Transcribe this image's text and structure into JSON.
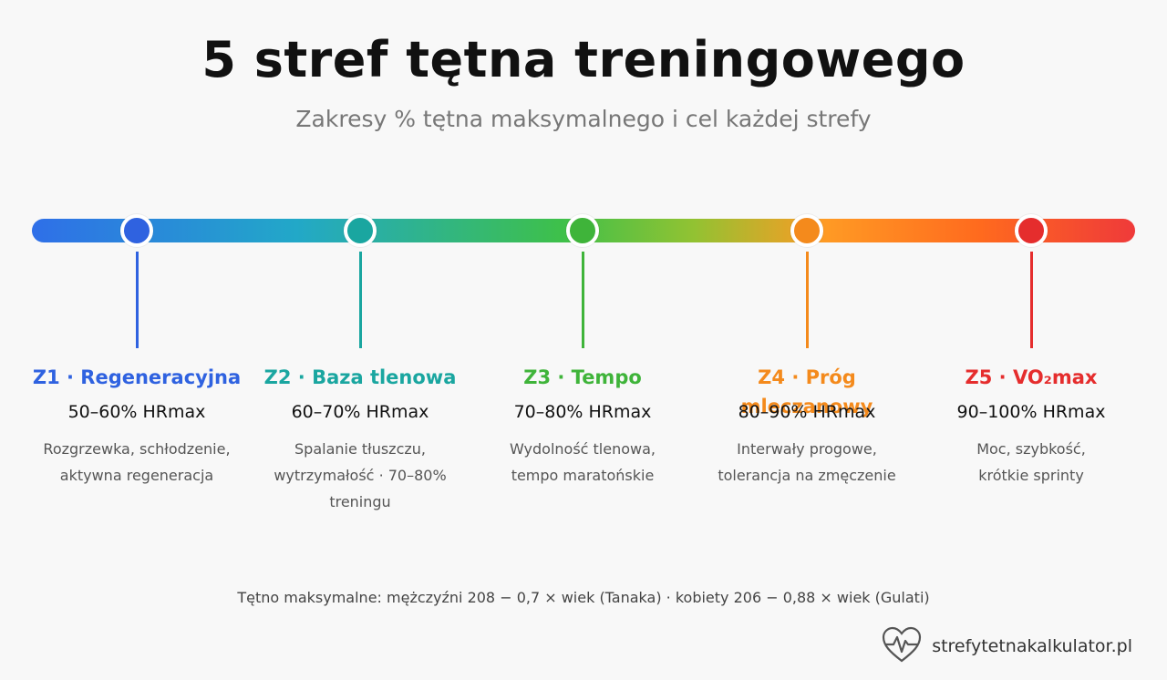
{
  "title": "5 stref tętna treningowego",
  "subtitle": "Zakresy % tętna maksymalnego i cel każdej strefy",
  "zones": [
    {
      "title": "Z1 · Regeneracyjna",
      "range": "50–60% HRmax",
      "desc": [
        "Rozgrzewka, schłodzenie,",
        "aktywna regeneracja"
      ],
      "color": "#2f62e0"
    },
    {
      "title": "Z2 · Baza tlenowa",
      "range": "60–70% HRmax",
      "desc": [
        "Spalanie tłuszczu,",
        "wytrzymałość · 70–80%",
        "treningu"
      ],
      "color": "#1aa6a0"
    },
    {
      "title": "Z3 · Tempo",
      "range": "70–80% HRmax",
      "desc": [
        "Wydolność tlenowa,",
        "tempo maratońskie"
      ],
      "color": "#3fb43a"
    },
    {
      "title": "Z4 · Próg mleczanowy",
      "range": "80–90% HRmax",
      "desc": [
        "Interwały progowe,",
        "tolerancja na zmęczenie"
      ],
      "color": "#f48a1c"
    },
    {
      "title": "Z5 · VO₂max",
      "range": "90–100% HRmax",
      "desc": [
        "Moc, szybkość,",
        "krótkie sprinty"
      ],
      "color": "#e52d2d"
    }
  ],
  "formula": "Tętno maksymalne: mężczyźni 208 − 0,7 × wiek (Tanaka) · kobiety 206 − 0,88 × wiek (Gulati)",
  "brand": {
    "name": "strefytetnakalkulator.pl",
    "icon": "heart-pulse-icon"
  }
}
